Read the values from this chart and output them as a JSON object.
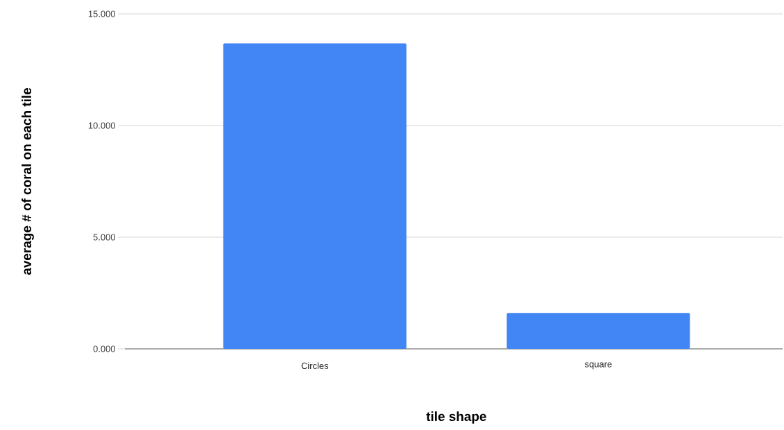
{
  "chart_data": {
    "type": "bar",
    "xlabel": "tile shape",
    "ylabel": "average # of coral on each tile",
    "categories": [
      "Circles",
      "square"
    ],
    "values": [
      13.68,
      1.61
    ],
    "color": "#4285f4",
    "ylim": [
      0,
      15
    ],
    "yticks": [
      {
        "value": 0,
        "label": "0.000"
      },
      {
        "value": 5,
        "label": "5.000"
      },
      {
        "value": 10,
        "label": "10.000"
      },
      {
        "value": 15,
        "label": "15.000"
      }
    ],
    "grid": "y"
  }
}
